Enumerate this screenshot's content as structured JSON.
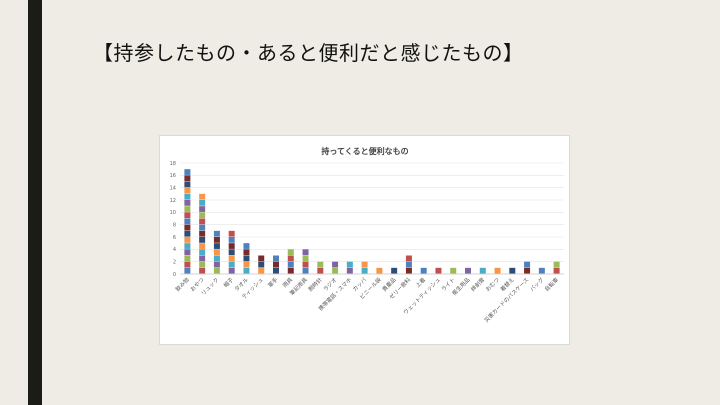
{
  "slide": {
    "title": "【持参したもの・あると便利だと感じたもの】"
  },
  "chart_data": {
    "type": "bar",
    "stacked": true,
    "title": "持ってくると便利なもの",
    "xlabel": "",
    "ylabel": "",
    "ylim": [
      0,
      18
    ],
    "yticks": [
      0,
      2,
      4,
      6,
      8,
      10,
      12,
      14,
      16,
      18
    ],
    "grid": true,
    "legend": "none",
    "categories": [
      "飲み物",
      "おやつ",
      "リュック",
      "帽子",
      "タオル",
      "ティッシュ",
      "軍手",
      "雨具",
      "筆記用具",
      "腕時計",
      "ラジオ",
      "携帯電話・スマホ",
      "カッパ",
      "ビニール袋",
      "貴重品",
      "ゼリー飲料",
      "上着",
      "ウェットティッシュ",
      "ライト",
      "衛生用品",
      "絆創膏",
      "おむつ",
      "着替え",
      "災害カードのパスケース",
      "バッグ",
      "自転車"
    ],
    "values": [
      17,
      13,
      7,
      7,
      5,
      3,
      3,
      4,
      4,
      2,
      2,
      2,
      2,
      1,
      1,
      3,
      1,
      1,
      1,
      1,
      1,
      1,
      1,
      2,
      1,
      2
    ],
    "segment_colors": [
      "#4f81bd",
      "#c0504d",
      "#9bbb59",
      "#8064a2",
      "#4bacc6",
      "#f79646",
      "#2c4d75",
      "#772c2a"
    ]
  }
}
